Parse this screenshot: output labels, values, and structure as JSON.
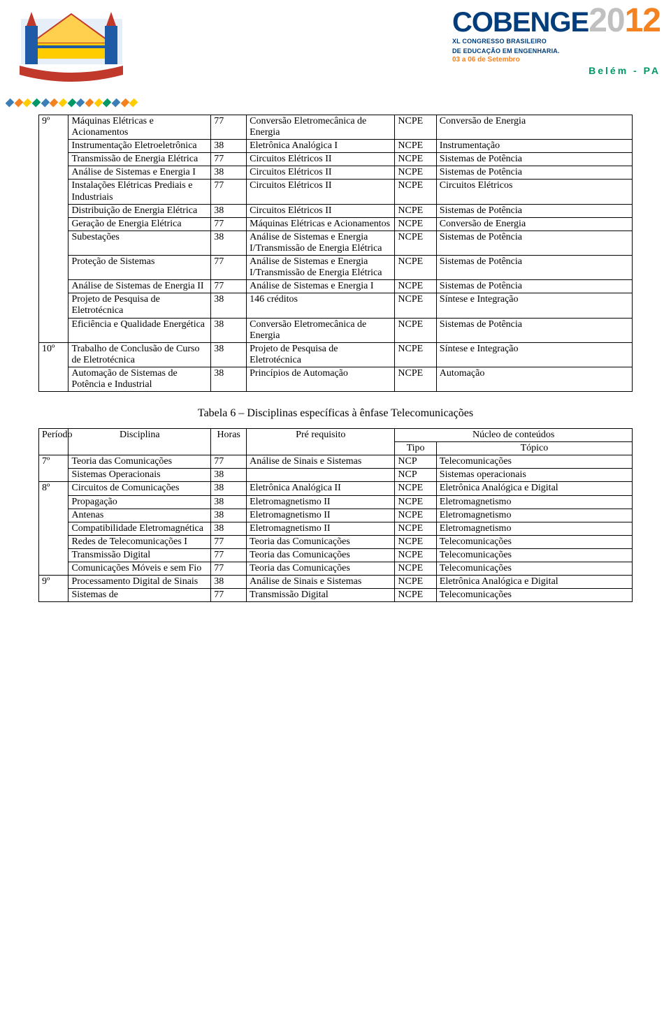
{
  "header": {
    "brand": "COBENGE",
    "year_prefix": "20",
    "year_suffix": "12",
    "line1": "XL CONGRESSO BRASILEIRO",
    "line2": "DE EDUCAÇÃO EM ENGENHARIA.",
    "dates": "03 a 06 de Setembro",
    "location": "Belém - PA",
    "diamond_colors": [
      "#3b7fb6",
      "#f58220",
      "#ffcc00",
      "#009966",
      "#3b7fb6",
      "#f58220",
      "#ffcc00",
      "#009966",
      "#3b7fb6",
      "#f58220",
      "#ffcc00",
      "#009966",
      "#3b7fb6",
      "#f58220",
      "#ffcc00"
    ],
    "logo_colors": {
      "sky": "#e6eef7",
      "building": "#ffcc00",
      "tower_left": "#1f5aa6",
      "tower_right": "#1f5aa6",
      "tip": "#c0392b",
      "ribbon": "#c0392b"
    }
  },
  "table5": {
    "periods": [
      "9º",
      "10º"
    ],
    "groups": [
      {
        "period_index": 0,
        "rows": [
          {
            "disc": "Máquinas Elétricas e Acionamentos",
            "hr": "77",
            "pre": "Conversão Eletromecânica de Energia",
            "tipo": "NCPE",
            "top": "Conversão de Energia"
          },
          {
            "disc": "Instrumentação Eletroeletrônica",
            "hr": "38",
            "pre": "Eletrônica Analógica I",
            "tipo": "NCPE",
            "top": "Instrumentação"
          },
          {
            "disc": "Transmissão de Energia Elétrica",
            "hr": "77",
            "pre": "Circuitos Elétricos II",
            "tipo": "NCPE",
            "top": "Sistemas de Potência"
          },
          {
            "disc": "Análise de Sistemas e Energia I",
            "hr": "38",
            "pre": "Circuitos Elétricos II",
            "tipo": "NCPE",
            "top": "Sistemas de Potência"
          },
          {
            "disc": "Instalações Elétricas Prediais e Industriais",
            "hr": "77",
            "pre": "Circuitos Elétricos II",
            "tipo": "NCPE",
            "top": "Circuitos Elétricos"
          },
          {
            "disc": "Distribuição de Energia Elétrica",
            "hr": "38",
            "pre": "Circuitos Elétricos II",
            "tipo": "NCPE",
            "top": "Sistemas de Potência"
          },
          {
            "disc": "Geração de Energia Elétrica",
            "hr": "77",
            "pre": "Máquinas Elétricas e Acionamentos",
            "tipo": "NCPE",
            "top": "Conversão de Energia"
          },
          {
            "disc": "Subestações",
            "hr": "38",
            "pre": "Análise de Sistemas e Energia I/Transmissão de Energia Elétrica",
            "tipo": "NCPE",
            "top": "Sistemas de Potência"
          },
          {
            "disc": "Proteção de Sistemas",
            "hr": "77",
            "pre": "Análise de Sistemas e Energia I/Transmissão de Energia Elétrica",
            "tipo": "NCPE",
            "top": "Sistemas de Potência"
          },
          {
            "disc": "Análise de Sistemas de Energia II",
            "hr": "77",
            "pre": "Análise de Sistemas e Energia I",
            "tipo": "NCPE",
            "top": "Sistemas de Potência"
          },
          {
            "disc": "Projeto de Pesquisa de Eletrotécnica",
            "hr": "38",
            "pre": "146 créditos",
            "tipo": "NCPE",
            "top": "Síntese e Integração"
          },
          {
            "disc": "Eficiência e Qualidade Energética",
            "hr": "38",
            "pre": "Conversão Eletromecânica de Energia",
            "tipo": "NCPE",
            "top": "Sistemas de Potência"
          }
        ]
      },
      {
        "period_index": 1,
        "rows": [
          {
            "disc": "Trabalho de Conclusão de Curso de Eletrotécnica",
            "hr": "38",
            "pre": "Projeto de Pesquisa de Eletrotécnica",
            "tipo": "NCPE",
            "top": "Síntese e Integração"
          },
          {
            "disc": "Automação de Sistemas de Potência e Industrial",
            "hr": "38",
            "pre": "Princípios de Automação",
            "tipo": "NCPE",
            "top": "Automação"
          }
        ]
      }
    ]
  },
  "caption6": "Tabela 6 – Disciplinas específicas à ênfase Telecomunicações",
  "table6": {
    "head": {
      "periodo": "Período",
      "disciplina": "Disciplina",
      "horas": "Horas",
      "pre": "Pré requisito",
      "nucleo": "Núcleo de conteúdos",
      "tipo": "Tipo",
      "topico": "Tópico"
    },
    "periods": [
      "7º",
      "8º",
      "9º"
    ],
    "groups": [
      {
        "period_index": 0,
        "rows": [
          {
            "disc": "Teoria das Comunicações",
            "hr": "77",
            "pre": "Análise de Sinais e Sistemas",
            "tipo": "NCP",
            "top": "Telecomunicações"
          },
          {
            "disc": "Sistemas Operacionais",
            "hr": "38",
            "pre": "",
            "tipo": "NCP",
            "top": "Sistemas operacionais"
          }
        ]
      },
      {
        "period_index": 1,
        "rows": [
          {
            "disc": "Circuitos de Comunicações",
            "hr": "38",
            "pre": "Eletrônica Analógica II",
            "tipo": "NCPE",
            "top": "Eletrônica Analógica e Digital"
          },
          {
            "disc": "Propagação",
            "hr": "38",
            "pre": "Eletromagnetismo II",
            "tipo": "NCPE",
            "top": "Eletromagnetismo"
          },
          {
            "disc": "Antenas",
            "hr": "38",
            "pre": "Eletromagnetismo II",
            "tipo": "NCPE",
            "top": "Eletromagnetismo"
          },
          {
            "disc": "Compatibilidade Eletromagnética",
            "hr": "38",
            "pre": "Eletromagnetismo II",
            "tipo": "NCPE",
            "top": "Eletromagnetismo"
          },
          {
            "disc": "Redes de Telecomunicações I",
            "hr": "77",
            "pre": "Teoria das Comunicações",
            "tipo": "NCPE",
            "top": "Telecomunicações"
          },
          {
            "disc": "Transmissão Digital",
            "hr": "77",
            "pre": "Teoria das Comunicações",
            "tipo": "NCPE",
            "top": "Telecomunicações"
          },
          {
            "disc": "Comunicações Móveis e sem Fio",
            "hr": "77",
            "pre": "Teoria das Comunicações",
            "tipo": "NCPE",
            "top": "Telecomunicações"
          }
        ]
      },
      {
        "period_index": 2,
        "rows": [
          {
            "disc": "Processamento Digital de Sinais",
            "hr": "38",
            "pre": "Análise de Sinais e Sistemas",
            "tipo": "NCPE",
            "top": "Eletrônica Analógica e Digital"
          },
          {
            "disc": "Sistemas de",
            "hr": "77",
            "pre": "Transmissão Digital",
            "tipo": "NCPE",
            "top": "Telecomunicações"
          }
        ]
      }
    ]
  }
}
